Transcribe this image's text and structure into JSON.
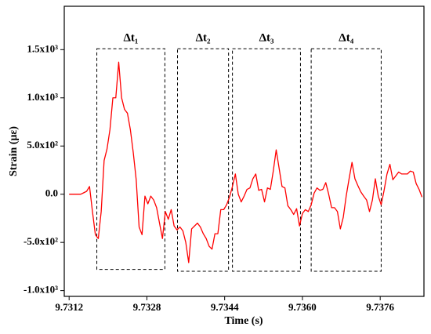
{
  "chart_data": {
    "type": "line",
    "xlabel": "Time (s)",
    "ylabel": "Strain (με)",
    "color": "#ff0000",
    "xlim": [
      9.7311,
      9.7385
    ],
    "ylim": [
      -1060,
      1950
    ],
    "xticks": [
      9.7312,
      9.7328,
      9.7344,
      {
        "value": 9.736,
        "label": "9.7360"
      },
      9.7376
    ],
    "yticks": [
      {
        "value": -1000,
        "label": "-1.0x10³"
      },
      {
        "value": -500,
        "label": "-5.0x10²"
      },
      {
        "value": 0,
        "label": "0.0"
      },
      {
        "value": 500,
        "label": "5.0x10²"
      },
      {
        "value": 1000,
        "label": "1.0x10³"
      },
      {
        "value": 1500,
        "label": "1.5x10³"
      }
    ],
    "x": [
      9.7312,
      9.73126,
      9.73132,
      9.73138,
      9.73144,
      9.7315,
      9.73156,
      9.73162,
      9.73168,
      9.73174,
      9.7318,
      9.73186,
      9.73192,
      9.73198,
      9.73204,
      9.7321,
      9.73216,
      9.73222,
      9.73228,
      9.73234,
      9.7324,
      9.73246,
      9.73252,
      9.73258,
      9.73264,
      9.7327,
      9.73276,
      9.73282,
      9.73288,
      9.73294,
      9.733,
      9.73306,
      9.73312,
      9.73318,
      9.73324,
      9.7333,
      9.73336,
      9.73342,
      9.73348,
      9.73354,
      9.7336,
      9.73366,
      9.73372,
      9.73378,
      9.73384,
      9.7339,
      9.73396,
      9.73402,
      9.73408,
      9.73414,
      9.7342,
      9.73426,
      9.73432,
      9.73438,
      9.73444,
      9.7345,
      9.73456,
      9.73462,
      9.73468,
      9.73474,
      9.7348,
      9.73486,
      9.73492,
      9.73498,
      9.73504,
      9.7351,
      9.73516,
      9.73522,
      9.73528,
      9.73534,
      9.7354,
      9.73546,
      9.73552,
      9.73558,
      9.73564,
      9.7357,
      9.73576,
      9.73582,
      9.73588,
      9.73594,
      9.736,
      9.73606,
      9.73612,
      9.73618,
      9.73624,
      9.7363,
      9.73636,
      9.73642,
      9.73648,
      9.73654,
      9.7366,
      9.73666,
      9.73672,
      9.73678,
      9.73684,
      9.7369,
      9.73696,
      9.73702,
      9.73708,
      9.73714,
      9.7372,
      9.73726,
      9.73732,
      9.73738,
      9.73744,
      9.7375,
      9.73756,
      9.73762,
      9.73768,
      9.73774,
      9.7378,
      9.73786,
      9.73792,
      9.73798,
      9.73804,
      9.7381,
      9.73816,
      9.73822,
      9.73828,
      9.73834,
      9.7384,
      9.73846
    ],
    "values": [
      0,
      0,
      0,
      0,
      0,
      15,
      30,
      80,
      -180,
      -420,
      -460,
      -180,
      350,
      470,
      670,
      1000,
      1000,
      1370,
      1000,
      880,
      840,
      670,
      430,
      150,
      -340,
      -420,
      -20,
      -100,
      -20,
      -60,
      -140,
      -300,
      -460,
      -180,
      -260,
      -160,
      -330,
      -370,
      -340,
      -380,
      -500,
      -710,
      -360,
      -330,
      -300,
      -340,
      -410,
      -460,
      -540,
      -570,
      -410,
      -410,
      -160,
      -160,
      -110,
      -30,
      80,
      210,
      0,
      -80,
      -20,
      50,
      65,
      160,
      210,
      40,
      50,
      -80,
      65,
      50,
      240,
      460,
      270,
      80,
      65,
      -120,
      -160,
      -210,
      -150,
      -330,
      -200,
      -160,
      -180,
      -110,
      10,
      65,
      40,
      50,
      120,
      0,
      -140,
      -140,
      -180,
      -360,
      -240,
      -20,
      160,
      330,
      160,
      90,
      25,
      -20,
      -60,
      -180,
      -60,
      160,
      -20,
      -110,
      40,
      210,
      310,
      150,
      190,
      230,
      210,
      210,
      210,
      240,
      230,
      110,
      50,
      -30
    ],
    "annotations": [
      {
        "text": "Δt₁",
        "x": [
          9.73177,
          9.73317
        ],
        "y": [
          -780,
          1510
        ]
      },
      {
        "text": "Δt₂",
        "x": [
          9.73343,
          9.73448
        ],
        "y": [
          -800,
          1510
        ]
      },
      {
        "text": "Δt₃",
        "x": [
          9.73456,
          9.73596
        ],
        "y": [
          -800,
          1510
        ]
      },
      {
        "text": "Δt₄",
        "x": [
          9.73618,
          9.73762
        ],
        "y": [
          -800,
          1510
        ]
      }
    ]
  }
}
